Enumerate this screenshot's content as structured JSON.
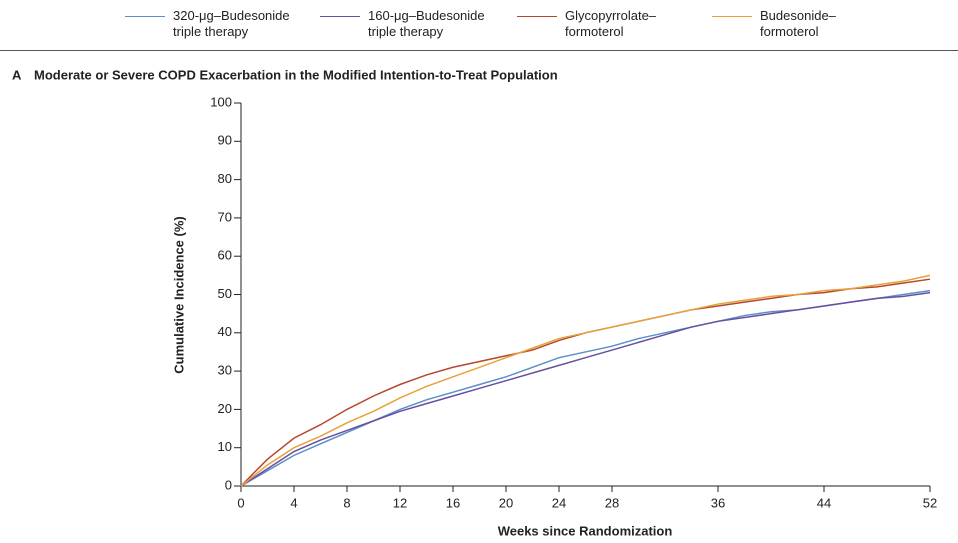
{
  "chart_data": {
    "type": "line",
    "panel_label": "A",
    "title": "Moderate or Severe COPD Exacerbation in the Modified Intention-to-Treat Population",
    "x_label": "Weeks since Randomization",
    "y_label": "Cumulative Incidence (%)",
    "x": [
      0,
      2,
      4,
      6,
      8,
      10,
      12,
      14,
      16,
      18,
      20,
      22,
      24,
      26,
      28,
      30,
      32,
      34,
      36,
      38,
      40,
      42,
      44,
      46,
      48,
      50,
      52
    ],
    "series": [
      {
        "name": "320-μg–Budesonide triple therapy",
        "color": "#5b8fc9",
        "values": [
          0,
          4,
          8,
          11,
          14,
          17,
          20,
          22.5,
          24.5,
          26.5,
          28.5,
          31,
          33.5,
          35,
          36.5,
          38.5,
          40,
          41.5,
          43,
          44.5,
          45.5,
          46,
          47,
          48,
          49,
          50,
          51
        ]
      },
      {
        "name": "160-μg–Budesonide triple therapy",
        "color": "#6a4fa0",
        "values": [
          0,
          4.5,
          9,
          12,
          14.5,
          17,
          19.5,
          21.5,
          23.5,
          25.5,
          27.5,
          29.5,
          31.5,
          33.5,
          35.5,
          37.5,
          39.5,
          41.5,
          43,
          44,
          45,
          46,
          47,
          48,
          49,
          49.5,
          50.5
        ]
      },
      {
        "name": "Glycopyrrolate–formoterol",
        "color": "#b5472f",
        "values": [
          0,
          7,
          12.5,
          16,
          20,
          23.5,
          26.5,
          29,
          31,
          32.5,
          34,
          35.5,
          38,
          40,
          41.5,
          43,
          44.5,
          46,
          47,
          48,
          49,
          50,
          50.5,
          51.5,
          52,
          53,
          54
        ]
      },
      {
        "name": "Budesonide–formoterol",
        "color": "#e8a23c",
        "values": [
          0,
          5.5,
          10,
          13,
          16.5,
          19.5,
          23,
          26,
          28.5,
          31,
          33.5,
          36,
          38.5,
          40,
          41.5,
          43,
          44.5,
          46,
          47.5,
          48.5,
          49.5,
          50,
          51,
          51.5,
          52.5,
          53.5,
          55
        ]
      }
    ],
    "xlim": [
      0,
      52
    ],
    "xticks": [
      0,
      4,
      8,
      12,
      16,
      20,
      24,
      28,
      36,
      44,
      52
    ],
    "ylim": [
      0,
      100
    ],
    "yticks": [
      0,
      10,
      20,
      30,
      40,
      50,
      60,
      70,
      80,
      90,
      100
    ]
  }
}
